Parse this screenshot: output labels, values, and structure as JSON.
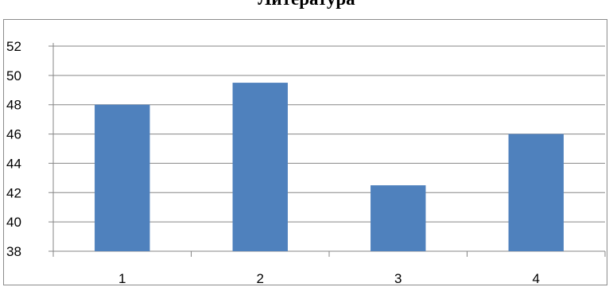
{
  "chart_data": {
    "type": "bar",
    "title": "Литература",
    "categories": [
      "1",
      "2",
      "3",
      "4"
    ],
    "values": [
      48,
      49.5,
      42.5,
      46
    ],
    "ylim": [
      38,
      52
    ],
    "yticks": [
      "38",
      "40",
      "42",
      "44",
      "46",
      "48",
      "50",
      "52"
    ],
    "grid": true,
    "bar_color": "#4F81BD",
    "grid_color": "#868686"
  }
}
